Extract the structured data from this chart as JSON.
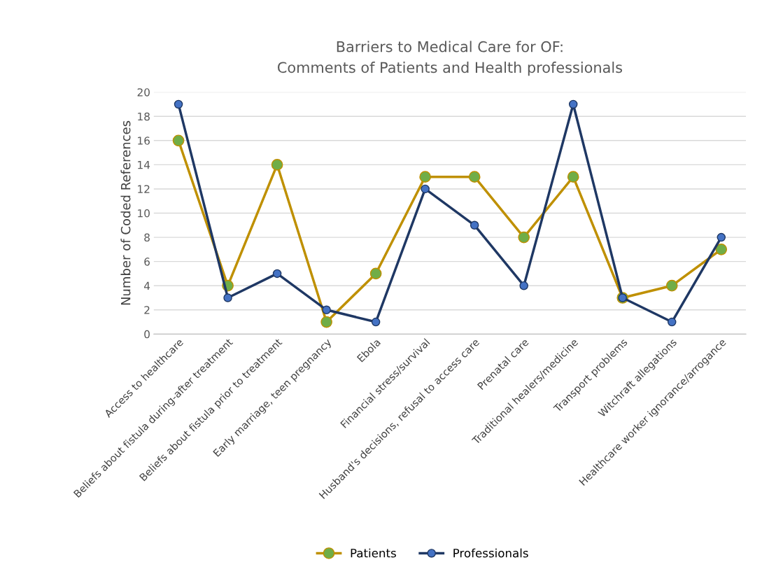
{
  "chart_data": {
    "type": "line",
    "title": "Barriers to Medical Care for OF:\nComments of Patients and Health professionals",
    "ylabel": "Number of Coded References",
    "categories": [
      "Access to healthcare",
      "Beliefs about fistula during-after treatment",
      "Beliefs about fistula prior to treatment",
      "Early marriage, teen pregnancy",
      "Ebola",
      "Financial stress/survival",
      "Husband's decisions, refusal to access care",
      "Prenatal care",
      "Traditional healers/medicine",
      "Transport problems",
      "Witchraft allegations",
      "Healthcare worker ignorance/arrogance"
    ],
    "series": [
      {
        "name": "Patients",
        "color": "#bf9000",
        "values": [
          16,
          4,
          14,
          1,
          5,
          13,
          13,
          8,
          13,
          3,
          4,
          7
        ]
      },
      {
        "name": "Professionals",
        "color": "#1f3864",
        "values": [
          19,
          3,
          5,
          2,
          1,
          12,
          9,
          4,
          19,
          3,
          1,
          8
        ]
      }
    ],
    "ylim": [
      0,
      20
    ],
    "yticks": [
      0,
      2,
      4,
      6,
      8,
      10,
      12,
      14,
      16,
      18,
      20
    ],
    "grid": "y",
    "legend": "bottom",
    "marker": "circle",
    "line_style": "solid"
  }
}
